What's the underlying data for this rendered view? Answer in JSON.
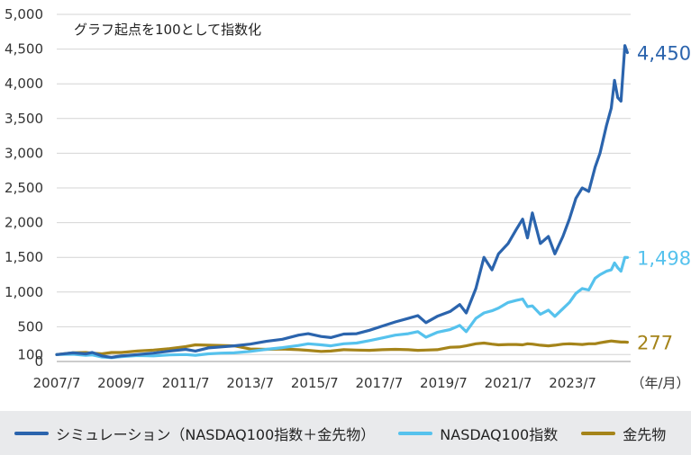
{
  "chart_data": {
    "type": "line",
    "annotation": "グラフ起点を100として指数化",
    "x_unit": "（年/月）",
    "x_ticks": [
      "2007/7",
      "2009/7",
      "2011/7",
      "2013/7",
      "2015/7",
      "2017/7",
      "2019/7",
      "2021/7",
      "2023/7"
    ],
    "y_ticks": [
      0,
      100,
      500,
      1000,
      1500,
      2000,
      2500,
      3000,
      3500,
      4000,
      4500,
      5000
    ],
    "y_tick_labels": [
      "0",
      "100",
      "500",
      "1,000",
      "1,500",
      "2,000",
      "2,500",
      "3,000",
      "3,500",
      "4,000",
      "4,500",
      "5,000"
    ],
    "ylim": [
      0,
      5000
    ],
    "xlim": [
      2007.5,
      2025.3
    ],
    "grid": true,
    "legend_position": "bottom",
    "series": [
      {
        "name": "シミュレーション（NASDAQ100指数＋金先物）",
        "color": "#2b64ad",
        "end_label": "4,450",
        "points": [
          [
            2007.5,
            100
          ],
          [
            2008.0,
            125
          ],
          [
            2008.4,
            110
          ],
          [
            2008.6,
            130
          ],
          [
            2008.9,
            80
          ],
          [
            2009.2,
            60
          ],
          [
            2009.5,
            80
          ],
          [
            2010.0,
            100
          ],
          [
            2010.5,
            120
          ],
          [
            2011.0,
            150
          ],
          [
            2011.5,
            175
          ],
          [
            2011.8,
            150
          ],
          [
            2012.2,
            195
          ],
          [
            2012.6,
            210
          ],
          [
            2013.0,
            225
          ],
          [
            2013.5,
            250
          ],
          [
            2014.0,
            290
          ],
          [
            2014.5,
            320
          ],
          [
            2015.0,
            380
          ],
          [
            2015.3,
            400
          ],
          [
            2015.7,
            360
          ],
          [
            2016.0,
            345
          ],
          [
            2016.4,
            395
          ],
          [
            2016.8,
            400
          ],
          [
            2017.2,
            450
          ],
          [
            2017.6,
            510
          ],
          [
            2018.0,
            570
          ],
          [
            2018.4,
            620
          ],
          [
            2018.7,
            660
          ],
          [
            2018.95,
            560
          ],
          [
            2019.3,
            650
          ],
          [
            2019.7,
            720
          ],
          [
            2020.0,
            820
          ],
          [
            2020.2,
            700
          ],
          [
            2020.5,
            1050
          ],
          [
            2020.75,
            1500
          ],
          [
            2021.0,
            1320
          ],
          [
            2021.2,
            1550
          ],
          [
            2021.5,
            1700
          ],
          [
            2021.75,
            1900
          ],
          [
            2021.95,
            2050
          ],
          [
            2022.1,
            1780
          ],
          [
            2022.25,
            2140
          ],
          [
            2022.5,
            1700
          ],
          [
            2022.75,
            1800
          ],
          [
            2022.95,
            1550
          ],
          [
            2023.2,
            1800
          ],
          [
            2023.4,
            2050
          ],
          [
            2023.6,
            2350
          ],
          [
            2023.8,
            2500
          ],
          [
            2024.0,
            2450
          ],
          [
            2024.2,
            2800
          ],
          [
            2024.35,
            3000
          ],
          [
            2024.55,
            3400
          ],
          [
            2024.7,
            3650
          ],
          [
            2024.8,
            4050
          ],
          [
            2024.9,
            3800
          ],
          [
            2025.0,
            3750
          ],
          [
            2025.12,
            4550
          ],
          [
            2025.2,
            4450
          ]
        ]
      },
      {
        "name": "NASDAQ100指数",
        "color": "#56c2ed",
        "end_label": "1,498",
        "points": [
          [
            2007.5,
            100
          ],
          [
            2008.0,
            105
          ],
          [
            2008.4,
            90
          ],
          [
            2008.6,
            95
          ],
          [
            2008.9,
            65
          ],
          [
            2009.2,
            55
          ],
          [
            2009.5,
            70
          ],
          [
            2010.0,
            85
          ],
          [
            2010.5,
            80
          ],
          [
            2011.0,
            95
          ],
          [
            2011.5,
            100
          ],
          [
            2011.8,
            90
          ],
          [
            2012.2,
            110
          ],
          [
            2012.6,
            120
          ],
          [
            2013.0,
            125
          ],
          [
            2013.5,
            145
          ],
          [
            2014.0,
            175
          ],
          [
            2014.5,
            200
          ],
          [
            2015.0,
            230
          ],
          [
            2015.3,
            255
          ],
          [
            2015.7,
            240
          ],
          [
            2016.0,
            225
          ],
          [
            2016.4,
            255
          ],
          [
            2016.8,
            265
          ],
          [
            2017.2,
            300
          ],
          [
            2017.6,
            340
          ],
          [
            2018.0,
            380
          ],
          [
            2018.4,
            400
          ],
          [
            2018.7,
            430
          ],
          [
            2018.95,
            350
          ],
          [
            2019.3,
            420
          ],
          [
            2019.7,
            460
          ],
          [
            2020.0,
            520
          ],
          [
            2020.2,
            430
          ],
          [
            2020.5,
            620
          ],
          [
            2020.75,
            700
          ],
          [
            2021.0,
            730
          ],
          [
            2021.2,
            770
          ],
          [
            2021.5,
            850
          ],
          [
            2021.75,
            880
          ],
          [
            2021.95,
            900
          ],
          [
            2022.1,
            790
          ],
          [
            2022.25,
            800
          ],
          [
            2022.5,
            680
          ],
          [
            2022.75,
            740
          ],
          [
            2022.95,
            650
          ],
          [
            2023.2,
            760
          ],
          [
            2023.4,
            850
          ],
          [
            2023.6,
            980
          ],
          [
            2023.8,
            1050
          ],
          [
            2024.0,
            1030
          ],
          [
            2024.2,
            1200
          ],
          [
            2024.35,
            1250
          ],
          [
            2024.55,
            1300
          ],
          [
            2024.7,
            1320
          ],
          [
            2024.8,
            1420
          ],
          [
            2024.9,
            1350
          ],
          [
            2025.0,
            1300
          ],
          [
            2025.12,
            1500
          ],
          [
            2025.2,
            1498
          ]
        ]
      },
      {
        "name": "金先物",
        "color": "#a5841a",
        "end_label": "277",
        "points": [
          [
            2007.5,
            100
          ],
          [
            2008.0,
            125
          ],
          [
            2008.4,
            130
          ],
          [
            2008.6,
            120
          ],
          [
            2008.9,
            110
          ],
          [
            2009.2,
            130
          ],
          [
            2009.5,
            130
          ],
          [
            2010.0,
            150
          ],
          [
            2010.5,
            165
          ],
          [
            2011.0,
            185
          ],
          [
            2011.5,
            215
          ],
          [
            2011.8,
            240
          ],
          [
            2012.2,
            235
          ],
          [
            2012.6,
            230
          ],
          [
            2013.0,
            225
          ],
          [
            2013.5,
            180
          ],
          [
            2014.0,
            175
          ],
          [
            2014.5,
            180
          ],
          [
            2015.0,
            170
          ],
          [
            2015.3,
            160
          ],
          [
            2015.7,
            145
          ],
          [
            2016.0,
            150
          ],
          [
            2016.4,
            170
          ],
          [
            2016.8,
            165
          ],
          [
            2017.2,
            160
          ],
          [
            2017.6,
            170
          ],
          [
            2018.0,
            175
          ],
          [
            2018.4,
            170
          ],
          [
            2018.7,
            160
          ],
          [
            2018.95,
            165
          ],
          [
            2019.3,
            170
          ],
          [
            2019.7,
            205
          ],
          [
            2020.0,
            210
          ],
          [
            2020.2,
            225
          ],
          [
            2020.5,
            255
          ],
          [
            2020.75,
            265
          ],
          [
            2021.0,
            250
          ],
          [
            2021.2,
            240
          ],
          [
            2021.5,
            245
          ],
          [
            2021.75,
            245
          ],
          [
            2021.95,
            240
          ],
          [
            2022.1,
            255
          ],
          [
            2022.25,
            250
          ],
          [
            2022.5,
            235
          ],
          [
            2022.75,
            225
          ],
          [
            2022.95,
            235
          ],
          [
            2023.2,
            250
          ],
          [
            2023.4,
            255
          ],
          [
            2023.6,
            250
          ],
          [
            2023.8,
            245
          ],
          [
            2024.0,
            255
          ],
          [
            2024.2,
            255
          ],
          [
            2024.35,
            270
          ],
          [
            2024.55,
            285
          ],
          [
            2024.7,
            295
          ],
          [
            2024.8,
            290
          ],
          [
            2024.9,
            285
          ],
          [
            2025.0,
            280
          ],
          [
            2025.12,
            280
          ],
          [
            2025.2,
            277
          ]
        ]
      }
    ]
  }
}
